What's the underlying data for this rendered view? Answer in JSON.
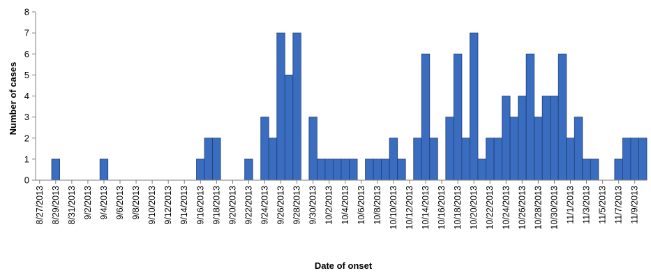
{
  "chart_data": {
    "type": "bar",
    "title": "",
    "xlabel": "Date of onset",
    "ylabel": "Number of cases",
    "ylim": [
      0,
      8
    ],
    "yticks": [
      0,
      1,
      2,
      3,
      4,
      5,
      6,
      7,
      8
    ],
    "grid": false,
    "legend": "none",
    "bar_color": "#3A6DBF",
    "bar_edge_color": "#1F3D73",
    "start_date": "8/27/2013",
    "x_tick_labels": [
      "8/27/2013",
      "8/29/2013",
      "8/31/2013",
      "9/2/2013",
      "9/4/2013",
      "9/6/2013",
      "9/8/2013",
      "9/10/2013",
      "9/12/2013",
      "9/14/2013",
      "9/16/2013",
      "9/18/2013",
      "9/20/2013",
      "9/22/2013",
      "9/24/2013",
      "9/26/2013",
      "9/28/2013",
      "9/30/2013",
      "10/2/2013",
      "10/4/2013",
      "10/6/2013",
      "10/8/2013",
      "10/10/2013",
      "10/12/2013",
      "10/14/2013",
      "10/16/2013",
      "10/18/2013",
      "10/20/2013",
      "10/22/2013",
      "10/24/2013",
      "10/26/2013",
      "10/28/2013",
      "10/30/2013",
      "11/1/2013",
      "11/3/2013",
      "11/5/2013",
      "11/7/2013",
      "11/9/2013"
    ],
    "categories": [
      "8/27/2013",
      "8/28/2013",
      "8/29/2013",
      "8/30/2013",
      "8/31/2013",
      "9/1/2013",
      "9/2/2013",
      "9/3/2013",
      "9/4/2013",
      "9/5/2013",
      "9/6/2013",
      "9/7/2013",
      "9/8/2013",
      "9/9/2013",
      "9/10/2013",
      "9/11/2013",
      "9/12/2013",
      "9/13/2013",
      "9/14/2013",
      "9/15/2013",
      "9/16/2013",
      "9/17/2013",
      "9/18/2013",
      "9/19/2013",
      "9/20/2013",
      "9/21/2013",
      "9/22/2013",
      "9/23/2013",
      "9/24/2013",
      "9/25/2013",
      "9/26/2013",
      "9/27/2013",
      "9/28/2013",
      "9/29/2013",
      "9/30/2013",
      "10/1/2013",
      "10/2/2013",
      "10/3/2013",
      "10/4/2013",
      "10/5/2013",
      "10/6/2013",
      "10/7/2013",
      "10/8/2013",
      "10/9/2013",
      "10/10/2013",
      "10/11/2013",
      "10/12/2013",
      "10/13/2013",
      "10/14/2013",
      "10/15/2013",
      "10/16/2013",
      "10/17/2013",
      "10/18/2013",
      "10/19/2013",
      "10/20/2013",
      "10/21/2013",
      "10/22/2013",
      "10/23/2013",
      "10/24/2013",
      "10/25/2013",
      "10/26/2013",
      "10/27/2013",
      "10/28/2013",
      "10/29/2013",
      "10/30/2013",
      "10/31/2013",
      "11/1/2013",
      "11/2/2013",
      "11/3/2013",
      "11/4/2013",
      "11/5/2013",
      "11/6/2013",
      "11/7/2013",
      "11/8/2013",
      "11/9/2013",
      "11/10/2013"
    ],
    "values": [
      0,
      0,
      1,
      0,
      0,
      0,
      0,
      0,
      1,
      0,
      0,
      0,
      0,
      0,
      0,
      0,
      0,
      0,
      0,
      0,
      1,
      2,
      2,
      0,
      0,
      0,
      1,
      0,
      3,
      2,
      7,
      5,
      7,
      0,
      3,
      1,
      1,
      1,
      1,
      1,
      0,
      1,
      1,
      1,
      2,
      1,
      0,
      2,
      6,
      2,
      0,
      3,
      6,
      2,
      7,
      1,
      2,
      2,
      4,
      3,
      4,
      6,
      3,
      4,
      4,
      6,
      2,
      3,
      1,
      1,
      0,
      0,
      1,
      2,
      2,
      2
    ]
  }
}
